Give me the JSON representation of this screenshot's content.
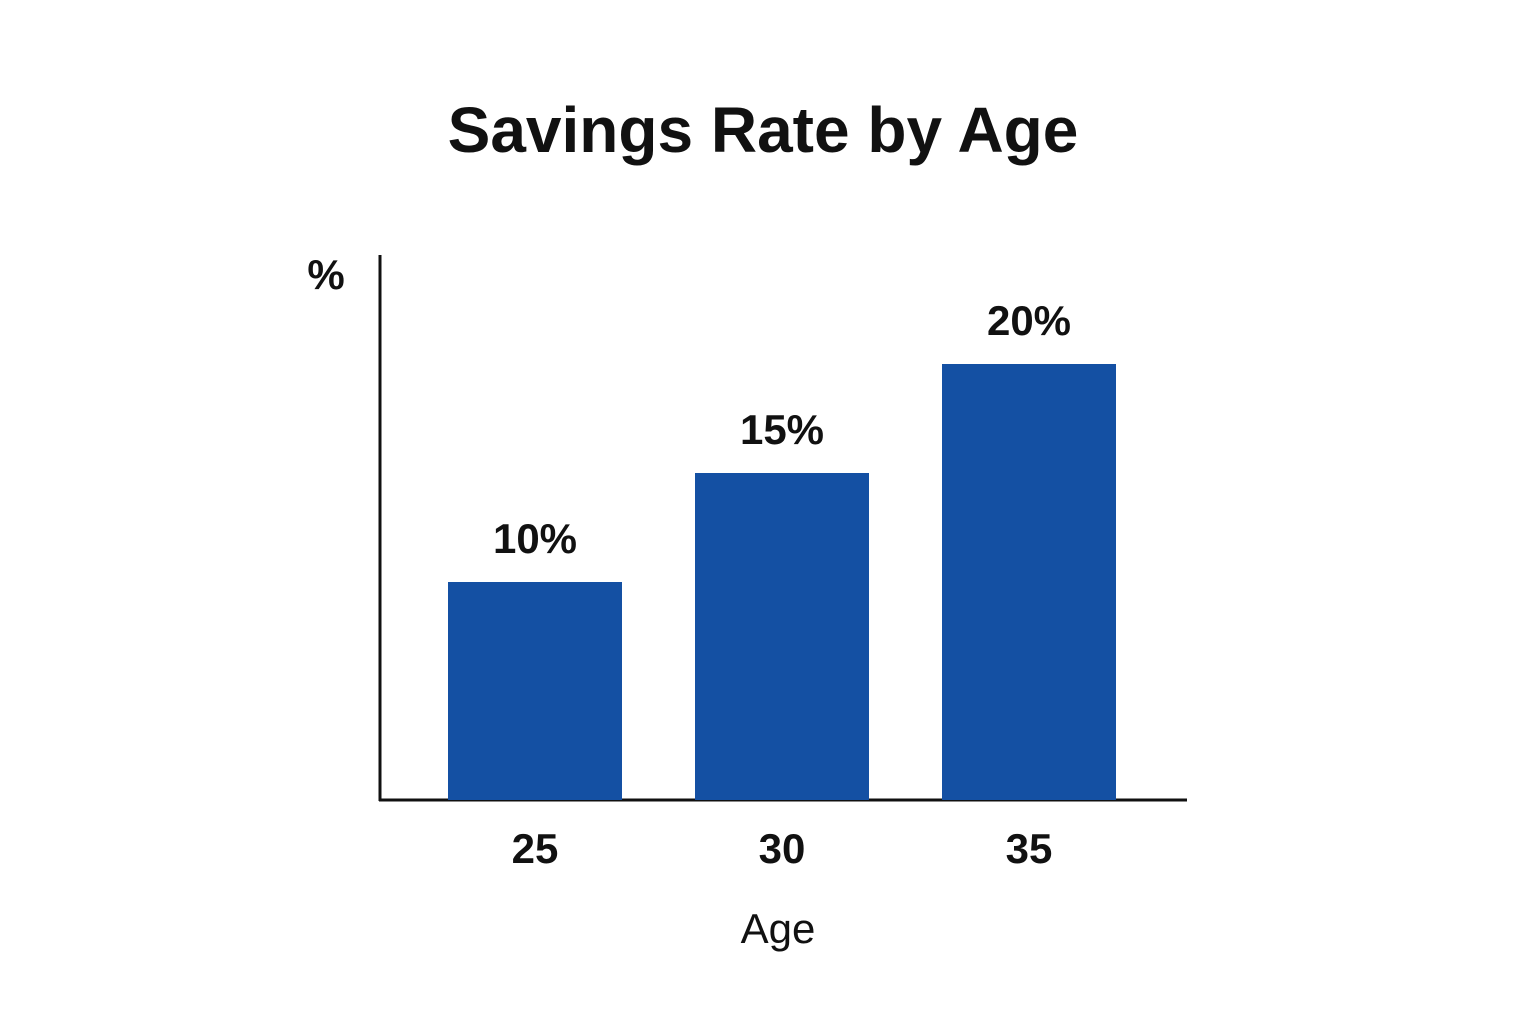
{
  "chart_data": {
    "type": "bar",
    "title": "Savings Rate by Age",
    "y_label": "%",
    "x_label": "Age",
    "categories": [
      "25",
      "30",
      "35"
    ],
    "values": [
      10,
      15,
      20
    ],
    "value_labels": [
      "10%",
      "15%",
      "20%"
    ],
    "color": "#1450a3",
    "ylim": [
      0,
      25
    ],
    "grid": false
  }
}
